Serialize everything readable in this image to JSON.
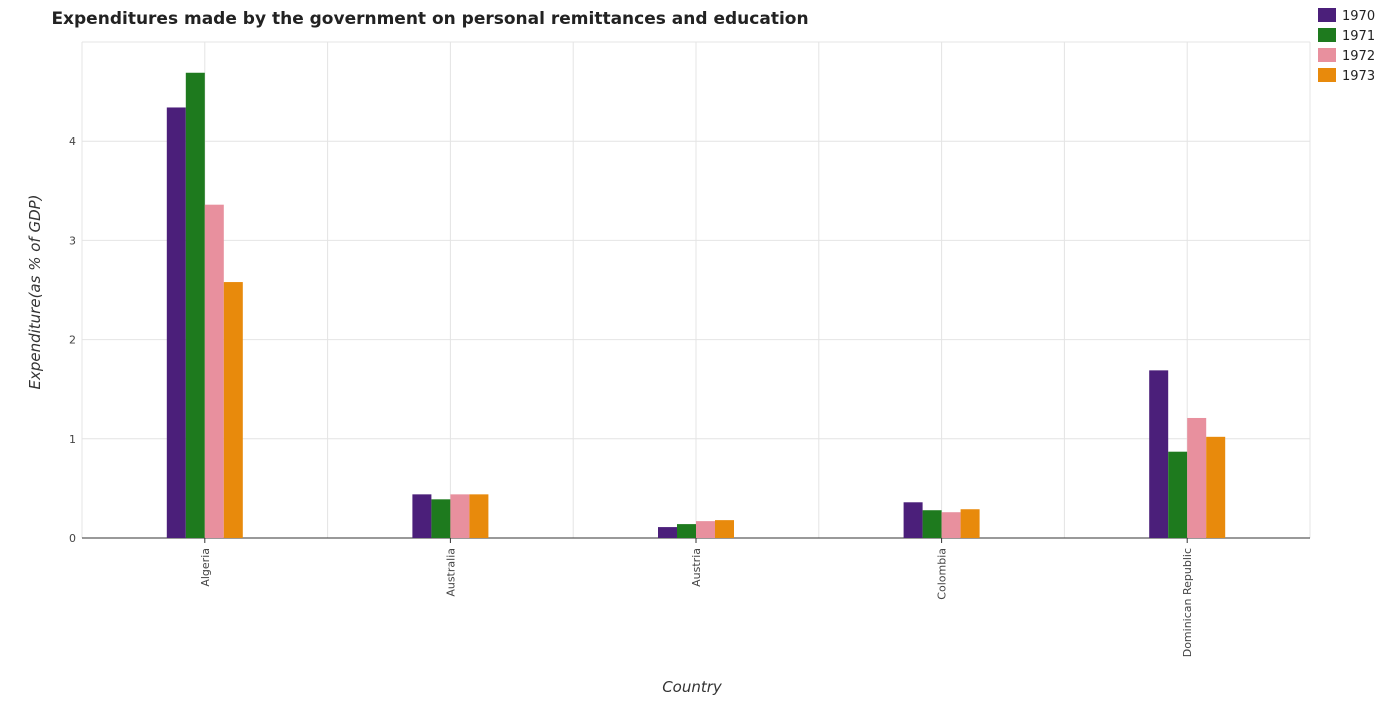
{
  "chart_data": {
    "type": "bar",
    "title": "Expenditures made by the government on personal remittances and education",
    "xlabel": "Country",
    "ylabel": "Expenditure(as % of GDP)",
    "categories": [
      "Algeria",
      "Australia",
      "Austria",
      "Colombia",
      "Dominican Republic"
    ],
    "series": [
      {
        "name": "1970",
        "color": "#4b1f7a",
        "values": [
          4.34,
          0.44,
          0.11,
          0.36,
          1.69
        ]
      },
      {
        "name": "1971",
        "color": "#1e7a1e",
        "values": [
          4.69,
          0.39,
          0.14,
          0.28,
          0.87
        ]
      },
      {
        "name": "1972",
        "color": "#e8909e",
        "values": [
          3.36,
          0.44,
          0.17,
          0.26,
          1.21
        ]
      },
      {
        "name": "1973",
        "color": "#e88a0c",
        "values": [
          2.58,
          0.44,
          0.18,
          0.29,
          1.02
        ]
      }
    ],
    "yticks": [
      "0",
      "1",
      "2",
      "3",
      "4"
    ],
    "ylim": [
      0,
      5
    ],
    "grid": true,
    "legend_position": "top-right"
  }
}
